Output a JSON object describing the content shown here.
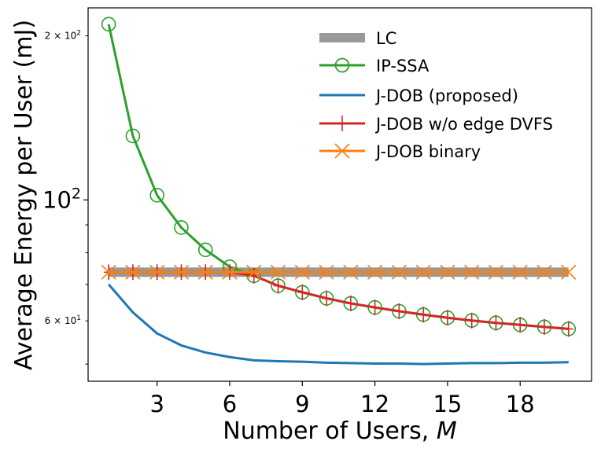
{
  "chart_data": {
    "type": "line",
    "y_scale": "log",
    "xlabel_prefix": "Number of Users, ",
    "xlabel_var": "M",
    "ylabel": "Average Energy per User (mJ)",
    "xlim": [
      0.15,
      20.95
    ],
    "ylim": [
      46.5,
      225
    ],
    "x_ticks": [
      3,
      6,
      9,
      12,
      15,
      18
    ],
    "x_tick_labels": [
      "3",
      "6",
      "9",
      "12",
      "15",
      "18"
    ],
    "y_ticks": [
      {
        "value": 200,
        "mantissa": "2 × 10",
        "exp": "2",
        "size": "minor"
      },
      {
        "value": 100,
        "mantissa": "10",
        "exp": "2",
        "size": "major"
      },
      {
        "value": 60,
        "mantissa": "6 × 10",
        "exp": "1",
        "size": "minor"
      }
    ],
    "legend_position": "upper-right",
    "x": [
      1,
      2,
      3,
      4,
      5,
      6,
      7,
      8,
      9,
      10,
      11,
      12,
      13,
      14,
      15,
      16,
      17,
      18,
      19,
      20
    ],
    "series": [
      {
        "name": "LC",
        "color": "#999999",
        "values": [
          73.7,
          73.7,
          73.7,
          73.7,
          73.7,
          73.7,
          73.7,
          73.7,
          73.7,
          73.7,
          73.7,
          73.7,
          73.7,
          73.7,
          73.7,
          73.7,
          73.7,
          73.7,
          73.7,
          73.7
        ]
      },
      {
        "name": "IP-SSA",
        "color": "#2ca02c",
        "values": [
          210,
          131,
          102,
          89,
          81,
          75.4,
          72.6,
          69.6,
          67.7,
          66.0,
          64.6,
          63.5,
          62.5,
          61.6,
          60.8,
          60.1,
          59.5,
          59.0,
          58.5,
          58.0
        ]
      },
      {
        "name": "J-DOB (proposed)",
        "color": "#1f77b4",
        "values": [
          70.0,
          62.2,
          56.9,
          54.1,
          52.5,
          51.5,
          50.8,
          50.6,
          50.5,
          50.3,
          50.2,
          50.1,
          50.1,
          50.0,
          50.1,
          50.2,
          50.2,
          50.3,
          50.3,
          50.4
        ]
      },
      {
        "name": "J-DOB w/o edge DVFS",
        "color": "#d62728",
        "values": [
          73.7,
          73.7,
          73.7,
          73.7,
          73.7,
          73.7,
          72.6,
          69.6,
          67.7,
          66.0,
          64.6,
          63.5,
          62.5,
          61.6,
          60.8,
          60.1,
          59.5,
          59.0,
          58.5,
          58.0
        ]
      },
      {
        "name": "J-DOB binary",
        "color": "#ff7f0e",
        "values": [
          73.7,
          73.7,
          73.7,
          73.7,
          73.7,
          73.7,
          73.7,
          73.7,
          73.7,
          73.7,
          73.7,
          73.7,
          73.7,
          73.7,
          73.7,
          73.7,
          73.7,
          73.7,
          73.7,
          73.7
        ]
      }
    ]
  }
}
